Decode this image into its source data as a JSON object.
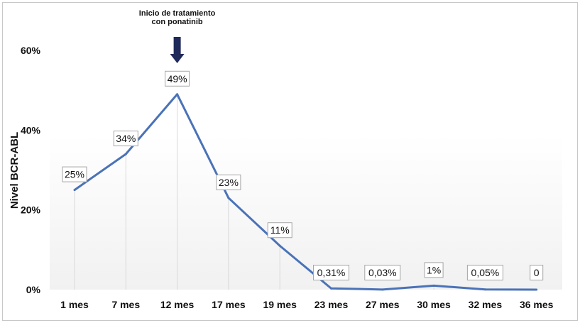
{
  "chart_data": {
    "type": "line",
    "categories": [
      "1 mes",
      "7 mes",
      "12 mes",
      "17 mes",
      "19 mes",
      "23 mes",
      "27 mes",
      "30 mes",
      "32 mes",
      "36 mes"
    ],
    "values": [
      25,
      34,
      49,
      23,
      11,
      0.31,
      0.03,
      1,
      0.05,
      0
    ],
    "data_labels": [
      "25%",
      "34%",
      "49%",
      "23%",
      "11%",
      "0,31%",
      "0,03%",
      "1%",
      "0,05%",
      "0"
    ],
    "ylabel": "Nivel BCR-ABL",
    "ylim": [
      0,
      60
    ],
    "yticks": [
      0,
      20,
      40,
      60
    ],
    "ytick_labels": [
      "0%",
      "20%",
      "40%",
      "60%"
    ],
    "annotation": {
      "lines": [
        "Inicio de tratamiento",
        "con ponatinib"
      ],
      "category": "12 mes"
    },
    "line_color": "#4a72b8",
    "arrow_color": "#1f2a5a",
    "grid": false,
    "legend": "none"
  }
}
